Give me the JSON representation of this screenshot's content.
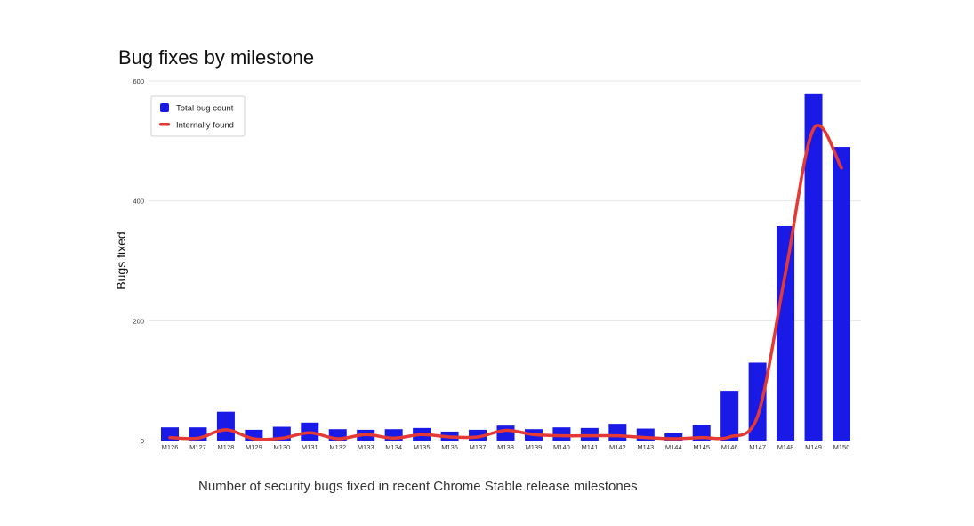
{
  "caption": "Number of security bugs fixed in recent Chrome Stable release milestones",
  "chart_data": {
    "type": "bar",
    "title": "Bug fixes by milestone",
    "xlabel": "",
    "ylabel": "Bugs fixed",
    "ylim": [
      0,
      600
    ],
    "yticks": [
      0,
      200,
      400,
      600
    ],
    "grid": true,
    "legend_position": "top-left",
    "categories": [
      "M126",
      "M127",
      "M128",
      "M129",
      "M130",
      "M131",
      "M132",
      "M133",
      "M134",
      "M135",
      "M136",
      "M137",
      "M138",
      "M139",
      "M140",
      "M141",
      "M142",
      "M143",
      "M144",
      "M145",
      "M146",
      "M147",
      "M148",
      "M149",
      "M150"
    ],
    "series": [
      {
        "name": "Total bug count",
        "type": "bar",
        "color": "#1a1ae6",
        "values": [
          22,
          22,
          48,
          18,
          23,
          30,
          19,
          18,
          19,
          21,
          15,
          18,
          25,
          19,
          22,
          21,
          28,
          20,
          12,
          26,
          83,
          130,
          358,
          578,
          490
        ]
      },
      {
        "name": "Internally found",
        "type": "line",
        "color": "#e53935",
        "values": [
          5,
          4,
          18,
          3,
          4,
          13,
          3,
          10,
          4,
          10,
          6,
          6,
          17,
          10,
          8,
          8,
          8,
          5,
          3,
          5,
          6,
          40,
          280,
          520,
          455
        ]
      }
    ]
  }
}
